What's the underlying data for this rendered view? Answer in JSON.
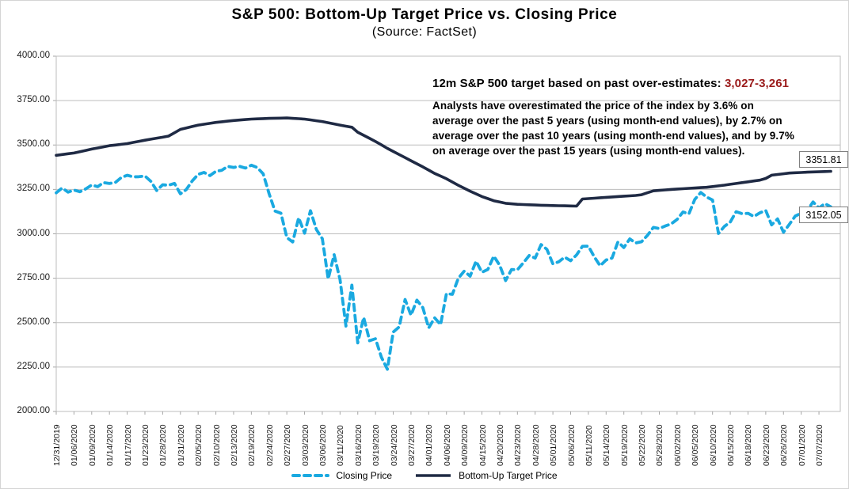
{
  "chart_data": {
    "type": "line",
    "title": "S&P 500: Bottom-Up Target Price vs. Closing Price",
    "subtitle": "(Source: FactSet)",
    "ylim": [
      2000,
      4000
    ],
    "ytick_step": 250,
    "ytick_labels": [
      "4000.00",
      "3750.00",
      "3500.00",
      "3250.00",
      "3000.00",
      "2750.00",
      "2500.00",
      "2250.00",
      "2000.00"
    ],
    "grid": true,
    "legend_position": "bottom",
    "x_tick_every": 3,
    "x_tick_labels": [
      "12/31/2019",
      "01/06/2020",
      "01/09/2020",
      "01/14/2020",
      "01/17/2020",
      "01/23/2020",
      "01/28/2020",
      "01/31/2020",
      "02/05/2020",
      "02/10/2020",
      "02/13/2020",
      "02/19/2020",
      "02/24/2020",
      "02/27/2020",
      "03/03/2020",
      "03/06/2020",
      "03/11/2020",
      "03/16/2020",
      "03/19/2020",
      "03/24/2020",
      "03/27/2020",
      "04/01/2020",
      "04/06/2020",
      "04/09/2020",
      "04/15/2020",
      "04/20/2020",
      "04/23/2020",
      "04/28/2020",
      "05/01/2020",
      "05/06/2020",
      "05/11/2020",
      "05/14/2020",
      "05/19/2020",
      "05/22/2020",
      "05/28/2020",
      "06/02/2020",
      "06/05/2020",
      "06/10/2020",
      "06/15/2020",
      "06/18/2020",
      "06/23/2020",
      "06/26/2020",
      "07/01/2020",
      "07/07/2020"
    ],
    "series": [
      {
        "name": "Closing Price",
        "style": "dashed",
        "color": "#1AA9E0",
        "values": [
          3230.78,
          3257.85,
          3234.85,
          3246.28,
          3237.18,
          3253.05,
          3274.7,
          3265.35,
          3288.13,
          3283.15,
          3289.29,
          3316.81,
          3329.62,
          3320.79,
          3321.75,
          3325.54,
          3295.47,
          3243.63,
          3276.24,
          3273.4,
          3283.66,
          3225.52,
          3248.92,
          3297.59,
          3334.69,
          3345.78,
          3327.71,
          3352.09,
          3357.75,
          3379.45,
          3373.94,
          3380.16,
          3370.29,
          3386.15,
          3373.23,
          3337.75,
          3225.89,
          3128.21,
          3116.39,
          2978.76,
          2954.22,
          3090.23,
          3003.37,
          3130.12,
          3023.94,
          2972.37,
          2746.56,
          2882.23,
          2741.38,
          2480.64,
          2711.02,
          2386.13,
          2529.19,
          2398.1,
          2409.39,
          2304.92,
          2237.4,
          2447.33,
          2475.56,
          2630.07,
          2541.47,
          2626.65,
          2584.59,
          2470.5,
          2526.9,
          2488.65,
          2663.68,
          2659.41,
          2749.98,
          2789.82,
          2761.63,
          2846.06,
          2783.36,
          2799.55,
          2874.56,
          2823.16,
          2736.56,
          2799.31,
          2797.8,
          2836.74,
          2878.48,
          2863.39,
          2939.51,
          2912.43,
          2830.71,
          2842.74,
          2868.44,
          2848.42,
          2881.19,
          2929.8,
          2930.32,
          2870.12,
          2820.0,
          2852.5,
          2863.7,
          2953.91,
          2922.94,
          2971.61,
          2948.51,
          2955.45,
          2991.77,
          3036.13,
          3029.73,
          3044.31,
          3055.73,
          3080.82,
          3122.87,
          3112.35,
          3193.93,
          3232.39,
          3207.18,
          3190.14,
          3002.1,
          3041.31,
          3066.59,
          3124.74,
          3113.49,
          3115.34,
          3097.74,
          3117.86,
          3131.29,
          3050.33,
          3083.76,
          3009.05,
          3053.24,
          3100.29,
          3115.86,
          3130.01,
          3179.72,
          3145.32,
          3169.94,
          3152.05
        ]
      },
      {
        "name": "Bottom-Up Target Price",
        "style": "solid",
        "color": "#1F2A44",
        "breakpoints": [
          [
            0,
            3442
          ],
          [
            3,
            3455
          ],
          [
            6,
            3477
          ],
          [
            9,
            3496
          ],
          [
            12,
            3508
          ],
          [
            15,
            3527
          ],
          [
            18,
            3544
          ],
          [
            19,
            3550
          ],
          [
            21,
            3588
          ],
          [
            24,
            3612
          ],
          [
            27,
            3627
          ],
          [
            30,
            3638
          ],
          [
            33,
            3646
          ],
          [
            36,
            3650
          ],
          [
            39,
            3652
          ],
          [
            42,
            3646
          ],
          [
            45,
            3632
          ],
          [
            48,
            3612
          ],
          [
            50,
            3600
          ],
          [
            51,
            3572
          ],
          [
            54,
            3520
          ],
          [
            56,
            3481
          ],
          [
            59,
            3429
          ],
          [
            62,
            3377
          ],
          [
            64,
            3340
          ],
          [
            66,
            3310
          ],
          [
            68,
            3273
          ],
          [
            70,
            3240
          ],
          [
            72,
            3210
          ],
          [
            74,
            3186
          ],
          [
            76,
            3172
          ],
          [
            78,
            3166
          ],
          [
            81,
            3162
          ],
          [
            84,
            3159
          ],
          [
            88,
            3156
          ],
          [
            89,
            3196
          ],
          [
            92,
            3203
          ],
          [
            95,
            3210
          ],
          [
            98,
            3216
          ],
          [
            99,
            3220
          ],
          [
            101,
            3242
          ],
          [
            104,
            3250
          ],
          [
            107,
            3256
          ],
          [
            110,
            3262
          ],
          [
            113,
            3274
          ],
          [
            116,
            3288
          ],
          [
            119,
            3302
          ],
          [
            120,
            3312
          ],
          [
            121,
            3330
          ],
          [
            124,
            3342
          ],
          [
            127,
            3347
          ],
          [
            131,
            3351.81
          ]
        ]
      }
    ],
    "end_labels": {
      "target": "3351.81",
      "closing": "3152.05"
    }
  },
  "annotation": {
    "headline_label": "12m S&P 500 target based on past over-estimates: ",
    "headline_range": "3,027-3,261",
    "body": "Analysts have overestimated the price of the index by 3.6% on\naverage over the past 5 years (using month-end values), by 2.7% on\naverage over the past 10 years (using month-end values), and by 9.7%\non average over the past 15 years (using month-end values)."
  },
  "colors": {
    "grid": "#BDBDBD",
    "axis": "#A6A6A6",
    "range_text": "#9B1B1B",
    "closing": "#1AA9E0",
    "target": "#1F2A44"
  }
}
